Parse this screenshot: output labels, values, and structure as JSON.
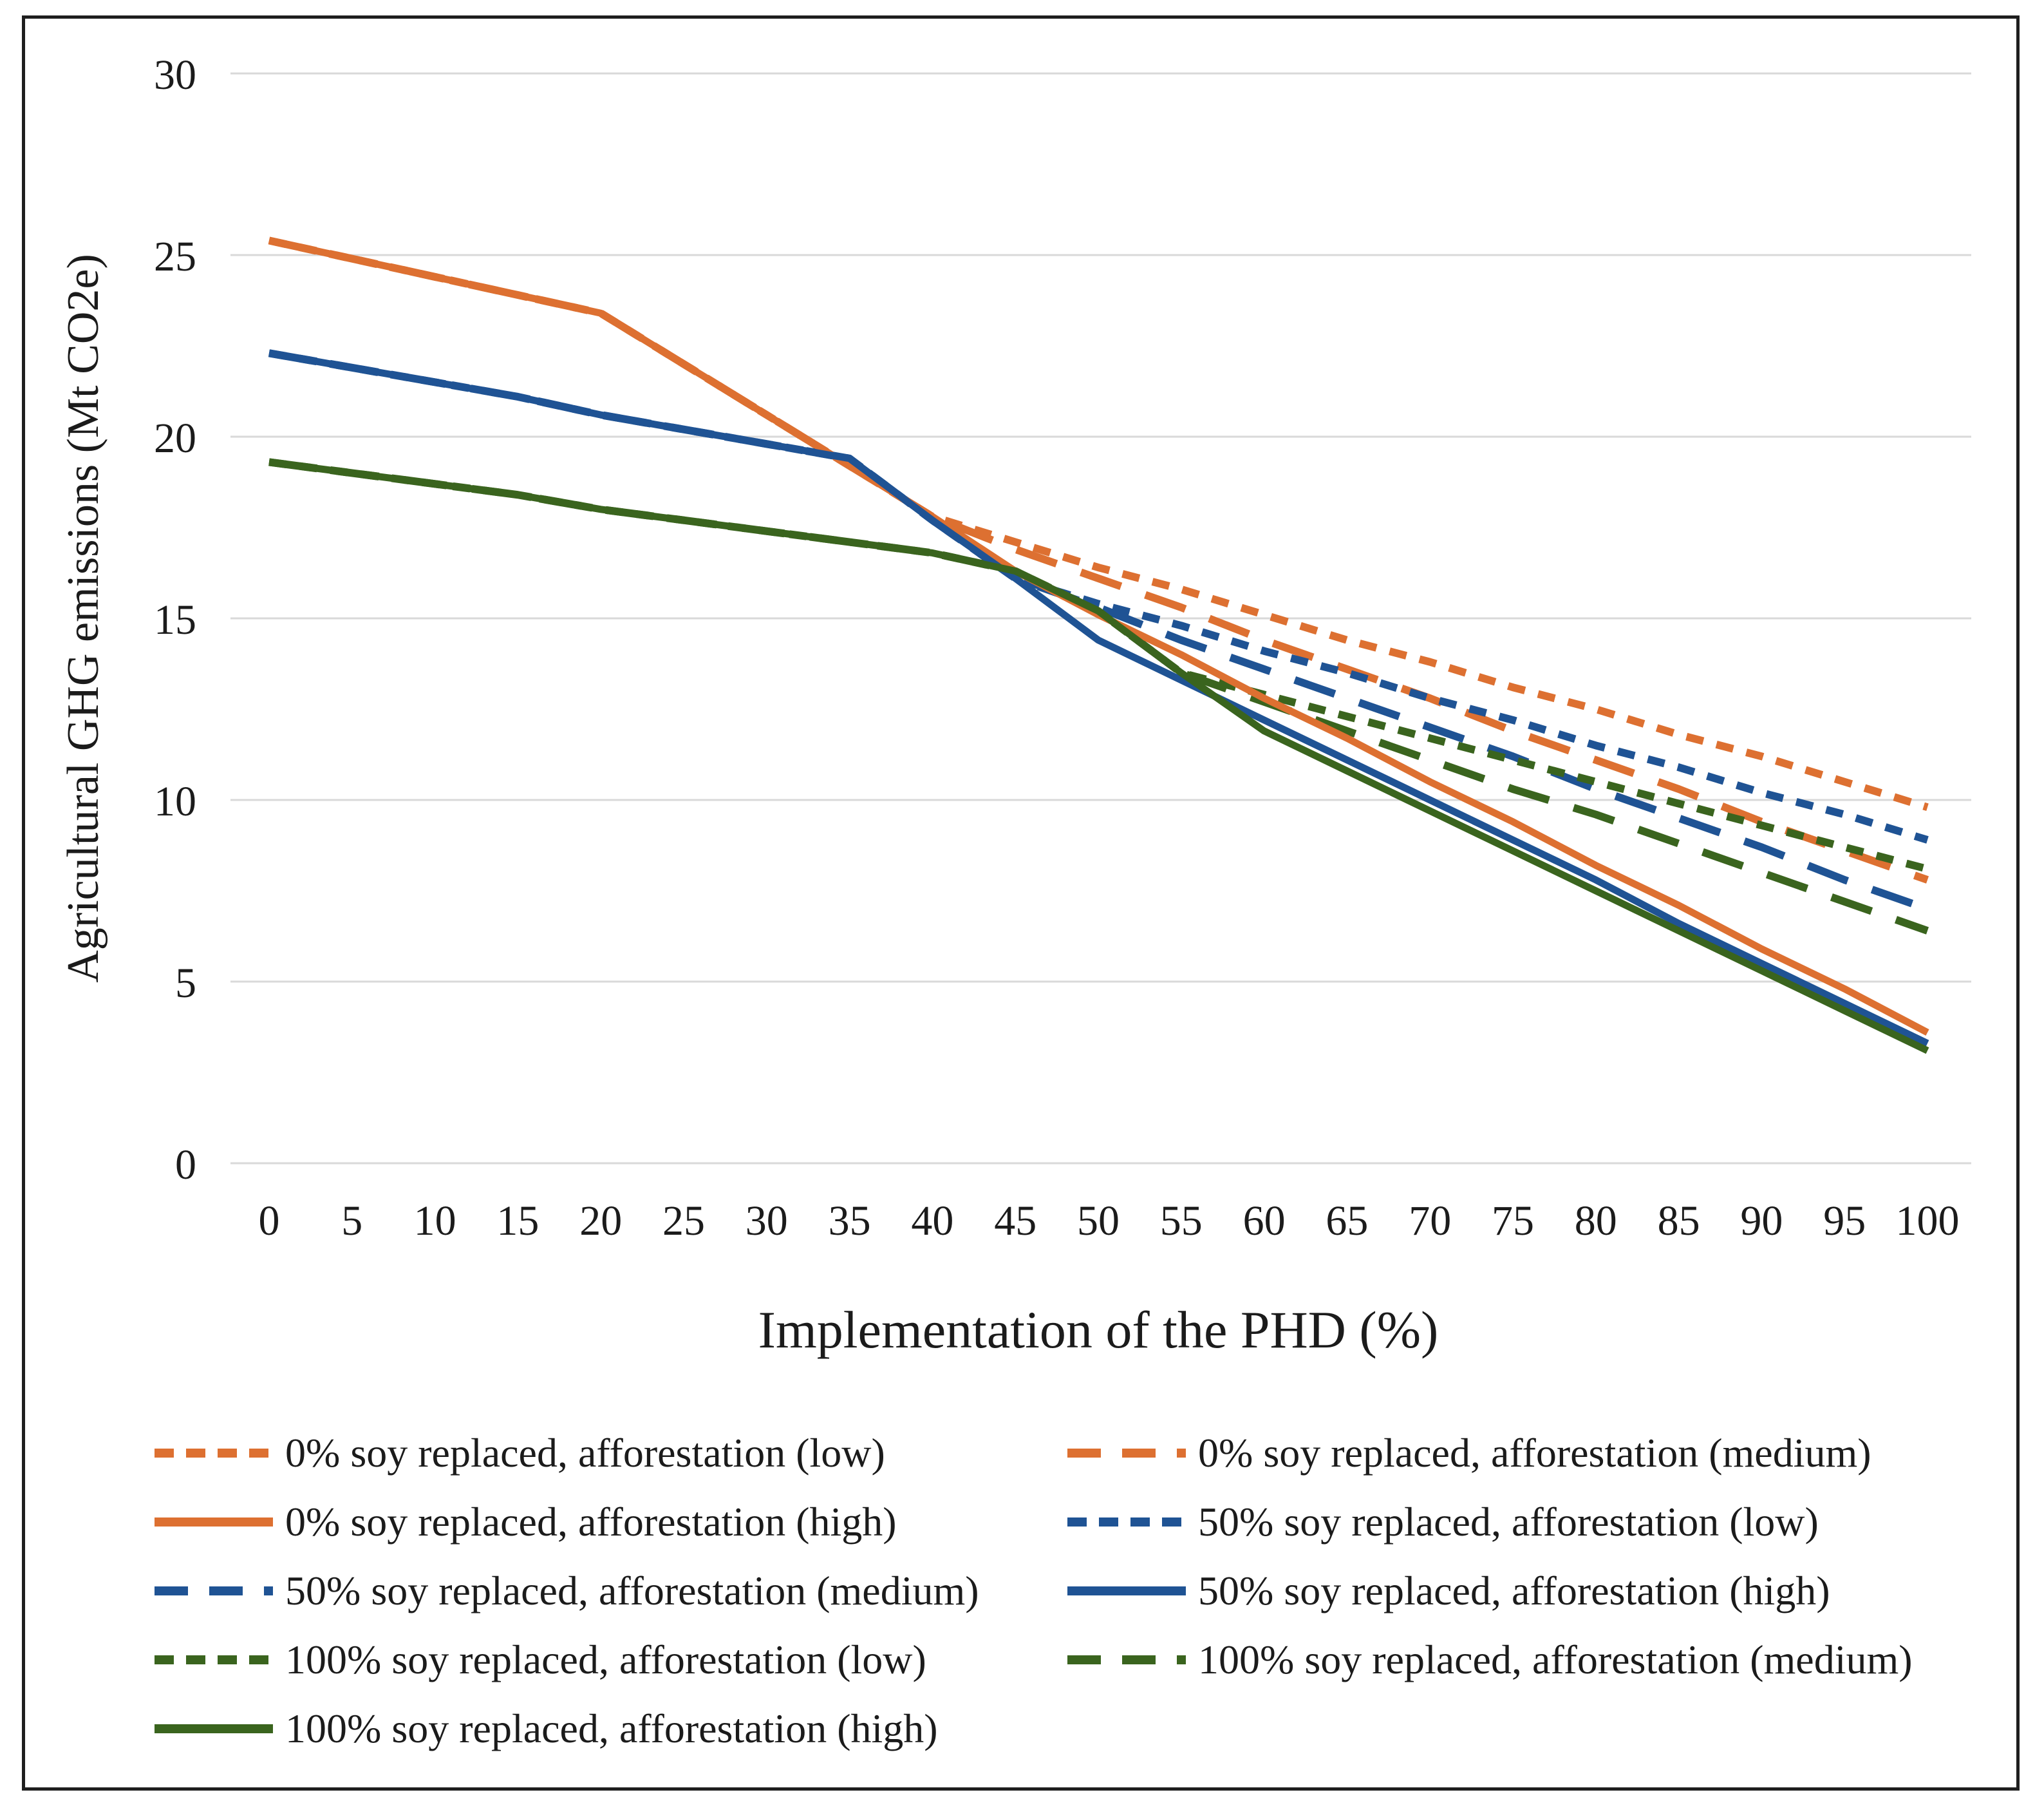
{
  "chart_data": {
    "type": "line",
    "x": [
      0,
      5,
      10,
      15,
      20,
      25,
      30,
      35,
      40,
      45,
      50,
      55,
      60,
      65,
      70,
      75,
      80,
      85,
      90,
      95,
      100
    ],
    "series": [
      {
        "id": "soy0_low",
        "label": "0% soy replaced, afforestation (low)",
        "color": "#DD7031",
        "dash": "short",
        "values": [
          25.4,
          24.9,
          24.4,
          23.9,
          23.4,
          22.0,
          20.6,
          19.2,
          17.8,
          17.1,
          16.4,
          15.8,
          15.1,
          14.4,
          13.8,
          13.1,
          12.5,
          11.8,
          11.2,
          10.5,
          9.8
        ]
      },
      {
        "id": "soy0_medium",
        "label": "0% soy replaced, afforestation (medium)",
        "color": "#DD7031",
        "dash": "long",
        "values": [
          25.4,
          24.9,
          24.4,
          23.9,
          23.4,
          22.0,
          20.6,
          19.2,
          17.8,
          16.9,
          16.1,
          15.3,
          14.4,
          13.6,
          12.8,
          11.9,
          11.1,
          10.3,
          9.4,
          8.6,
          7.8
        ]
      },
      {
        "id": "soy0_high",
        "label": "0% soy replaced, afforestation (high)",
        "color": "#DD7031",
        "dash": "solid",
        "values": [
          25.4,
          24.9,
          24.4,
          23.9,
          23.4,
          22.0,
          20.6,
          19.2,
          17.8,
          16.3,
          15.1,
          14.0,
          12.8,
          11.7,
          10.5,
          9.4,
          8.2,
          7.1,
          5.9,
          4.8,
          3.6
        ]
      },
      {
        "id": "soy50_low",
        "label": "50% soy replaced, afforestation (low)",
        "color": "#1F5394",
        "dash": "short",
        "values": [
          22.3,
          21.9,
          21.5,
          21.1,
          20.6,
          20.2,
          19.8,
          19.4,
          17.7,
          16.1,
          15.4,
          14.8,
          14.1,
          13.5,
          12.8,
          12.2,
          11.5,
          10.9,
          10.2,
          9.6,
          8.9
        ]
      },
      {
        "id": "soy50_medium",
        "label": "50% soy replaced, afforestation (medium)",
        "color": "#1F5394",
        "dash": "long",
        "values": [
          22.3,
          21.9,
          21.5,
          21.1,
          20.6,
          20.2,
          19.8,
          19.4,
          17.7,
          16.1,
          15.3,
          14.4,
          13.6,
          12.8,
          12.0,
          11.2,
          10.3,
          9.5,
          8.7,
          7.8,
          7.0
        ]
      },
      {
        "id": "soy50_high",
        "label": "50% soy replaced, afforestation (high)",
        "color": "#1F5394",
        "dash": "solid",
        "values": [
          22.3,
          21.9,
          21.5,
          21.1,
          20.6,
          20.2,
          19.8,
          19.4,
          17.7,
          16.1,
          14.4,
          13.3,
          12.2,
          11.1,
          10.0,
          8.9,
          7.8,
          6.6,
          5.5,
          4.4,
          3.3
        ]
      },
      {
        "id": "soy100_low",
        "label": "100% soy replaced, afforestation (low)",
        "color": "#3A641E",
        "dash": "short",
        "values": [
          19.3,
          19.0,
          18.7,
          18.4,
          18.0,
          17.7,
          17.4,
          17.1,
          16.8,
          16.3,
          15.2,
          13.5,
          12.9,
          12.3,
          11.7,
          11.1,
          10.5,
          9.9,
          9.3,
          8.7,
          8.1
        ]
      },
      {
        "id": "soy100_medium",
        "label": "100% soy replaced, afforestation (medium)",
        "color": "#3A641E",
        "dash": "long",
        "values": [
          19.3,
          19.0,
          18.7,
          18.4,
          18.0,
          17.7,
          17.4,
          17.1,
          16.8,
          16.3,
          15.2,
          13.5,
          12.7,
          11.9,
          11.1,
          10.3,
          9.6,
          8.8,
          8.0,
          7.2,
          6.4
        ]
      },
      {
        "id": "soy100_high",
        "label": "100% soy replaced, afforestation (high)",
        "color": "#3A641E",
        "dash": "solid",
        "values": [
          19.3,
          19.0,
          18.7,
          18.4,
          18.0,
          17.7,
          17.4,
          17.1,
          16.8,
          16.3,
          15.2,
          13.5,
          11.9,
          10.8,
          9.7,
          8.6,
          7.5,
          6.4,
          5.3,
          4.2,
          3.1
        ]
      }
    ],
    "axes": {
      "x": {
        "title": "Implementation of the PHD (%)",
        "ticks": [
          0,
          5,
          10,
          15,
          20,
          25,
          30,
          35,
          40,
          45,
          50,
          55,
          60,
          65,
          70,
          75,
          80,
          85,
          90,
          95,
          100
        ],
        "range": [
          0,
          100
        ]
      },
      "y": {
        "title": "Agricultural GHG emissions (Mt CO2e)",
        "ticks": [
          0,
          5,
          10,
          15,
          20,
          25,
          30
        ],
        "range": [
          0,
          30
        ]
      }
    },
    "grid": "horizontal-only",
    "gridline_color": "#D9D9D9",
    "legend_position": "bottom-two-columns"
  },
  "legend": {
    "items": [
      {
        "series": "soy0_low",
        "label": "0% soy replaced, afforestation (low)"
      },
      {
        "series": "soy0_high",
        "label": "0% soy replaced, afforestation (high)"
      },
      {
        "series": "soy50_medium",
        "label": "50% soy replaced, afforestation (medium)"
      },
      {
        "series": "soy100_low",
        "label": "100% soy replaced, afforestation (low)"
      },
      {
        "series": "soy100_high",
        "label": "100% soy replaced, afforestation (high)"
      },
      {
        "series": "soy0_medium",
        "label": "0% soy replaced, afforestation (medium)"
      },
      {
        "series": "soy50_low",
        "label": "50% soy replaced, afforestation (low)"
      },
      {
        "series": "soy50_high",
        "label": "50% soy replaced, afforestation (high)"
      },
      {
        "series": "soy100_medium",
        "label": "100% soy replaced, afforestation (medium)"
      }
    ]
  },
  "colors": {
    "orange": "#DD7031",
    "blue": "#1F5394",
    "green": "#3A641E",
    "gridline": "#D9D9D9",
    "text": "#1B1B1B",
    "frame": "#1F1F1F"
  }
}
